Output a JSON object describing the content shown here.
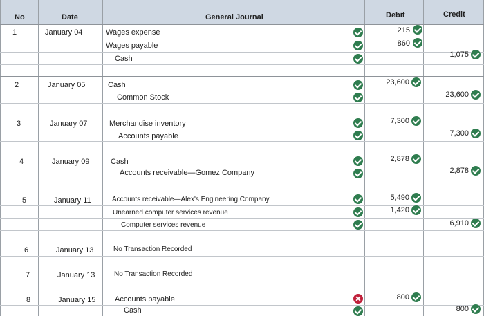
{
  "header": {
    "no": "No",
    "date": "Date",
    "journal": "General Journal",
    "debit": "Debit",
    "credit": "Credit"
  },
  "entries": [
    {
      "no": "1",
      "date": "January 04",
      "lines": [
        {
          "account": "Wages expense",
          "debit": "215"
        },
        {
          "account": "Wages payable",
          "debit": "860"
        },
        {
          "account": "Cash",
          "credit": "1,075"
        }
      ]
    },
    {
      "no": "2",
      "date": "January 05",
      "lines": [
        {
          "account": "Cash",
          "debit": "23,600"
        },
        {
          "account": "Common Stock",
          "credit": "23,600"
        }
      ]
    },
    {
      "no": "3",
      "date": "January 07",
      "lines": [
        {
          "account": "Merchandise inventory",
          "debit": "7,300"
        },
        {
          "account": "Accounts payable",
          "credit": "7,300"
        }
      ]
    },
    {
      "no": "4",
      "date": "January 09",
      "lines": [
        {
          "account": "Cash",
          "debit": "2,878"
        },
        {
          "account": "Accounts receivable—Gomez Company",
          "credit": "2,878"
        }
      ]
    },
    {
      "no": "5",
      "date": "January 11",
      "lines": [
        {
          "account": "Accounts receivable—Alex's Engineering Company",
          "debit": "5,490"
        },
        {
          "account": "Unearned computer services revenue",
          "debit": "1,420"
        },
        {
          "account": "Computer services revenue",
          "credit": "6,910"
        }
      ]
    },
    {
      "no": "6",
      "date": "January 13",
      "lines": [
        {
          "account": "No Transaction Recorded"
        }
      ]
    },
    {
      "no": "7",
      "date": "January 13",
      "lines": [
        {
          "account": "No Transaction Recorded"
        }
      ]
    },
    {
      "no": "8",
      "date": "January 15",
      "lines": [
        {
          "account": "Accounts payable",
          "debit": "800"
        },
        {
          "account": "Cash",
          "credit": "800"
        }
      ]
    }
  ],
  "icons": {
    "correct": "check-circle-icon",
    "incorrect": "x-circle-icon",
    "correct_color": "#2f7d4f",
    "incorrect_color": "#c0203a"
  }
}
